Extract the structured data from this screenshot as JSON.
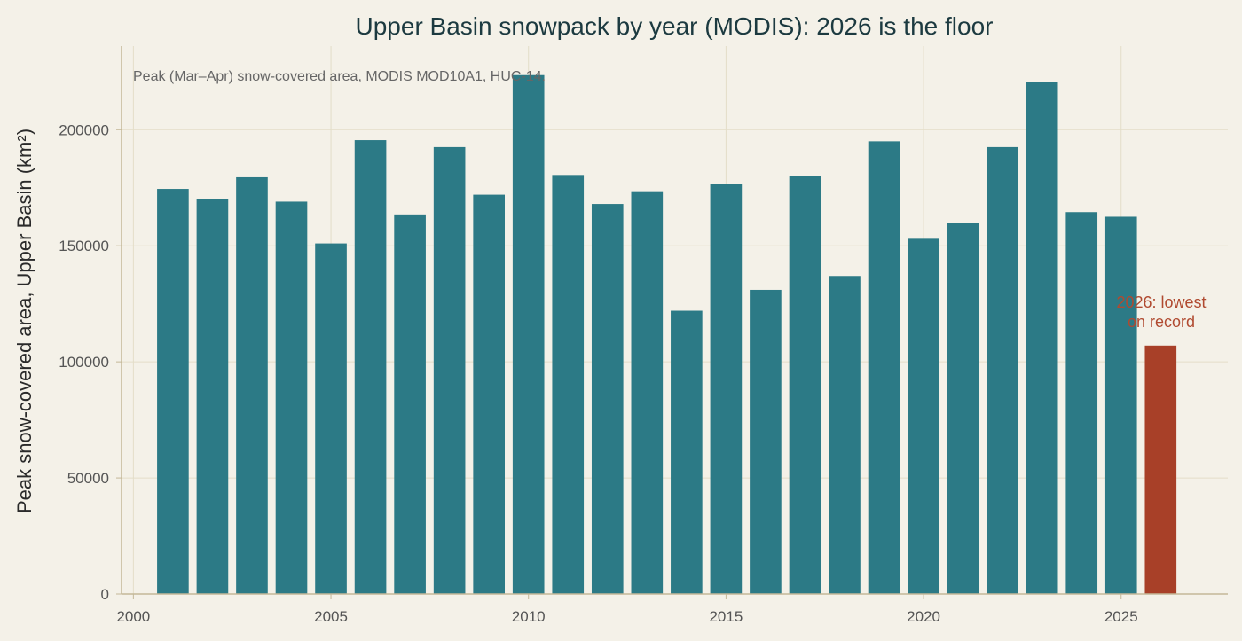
{
  "chart_data": {
    "type": "bar",
    "title": "Upper Basin snowpack by year (MODIS): 2026 is the floor",
    "subtitle": "Peak (Mar–Apr) snow-covered area, MODIS MOD10A1, HUC-14.",
    "xlabel": "",
    "ylabel": "Peak snow-covered area, Upper Basin (km²)",
    "x": [
      2001,
      2002,
      2003,
      2004,
      2005,
      2006,
      2007,
      2008,
      2009,
      2010,
      2011,
      2012,
      2013,
      2014,
      2015,
      2016,
      2017,
      2018,
      2019,
      2020,
      2021,
      2022,
      2023,
      2024,
      2025,
      2026
    ],
    "values": [
      174500,
      170000,
      179500,
      169000,
      151000,
      195500,
      163500,
      192500,
      172000,
      223500,
      180500,
      168000,
      173500,
      122000,
      176500,
      131000,
      180000,
      137000,
      195000,
      153000,
      160000,
      192500,
      220500,
      164500,
      162500,
      107000
    ],
    "xlim": [
      1999.7,
      2027.7
    ],
    "ylim": [
      0,
      236000
    ],
    "xticks": [
      "2000",
      "2005",
      "2010",
      "2015",
      "2020",
      "2025"
    ],
    "yticks": [
      "0",
      "50000",
      "100000",
      "150000",
      "200000"
    ],
    "highlight_year": 2026,
    "annotation": [
      "2026: lowest",
      "on record"
    ],
    "grid": true,
    "colors": {
      "bar": "#2c7a86",
      "highlight": "#a84028",
      "grid": "#e3ddc8",
      "axis": "#c4b898",
      "annotation": "#b04a30"
    }
  }
}
